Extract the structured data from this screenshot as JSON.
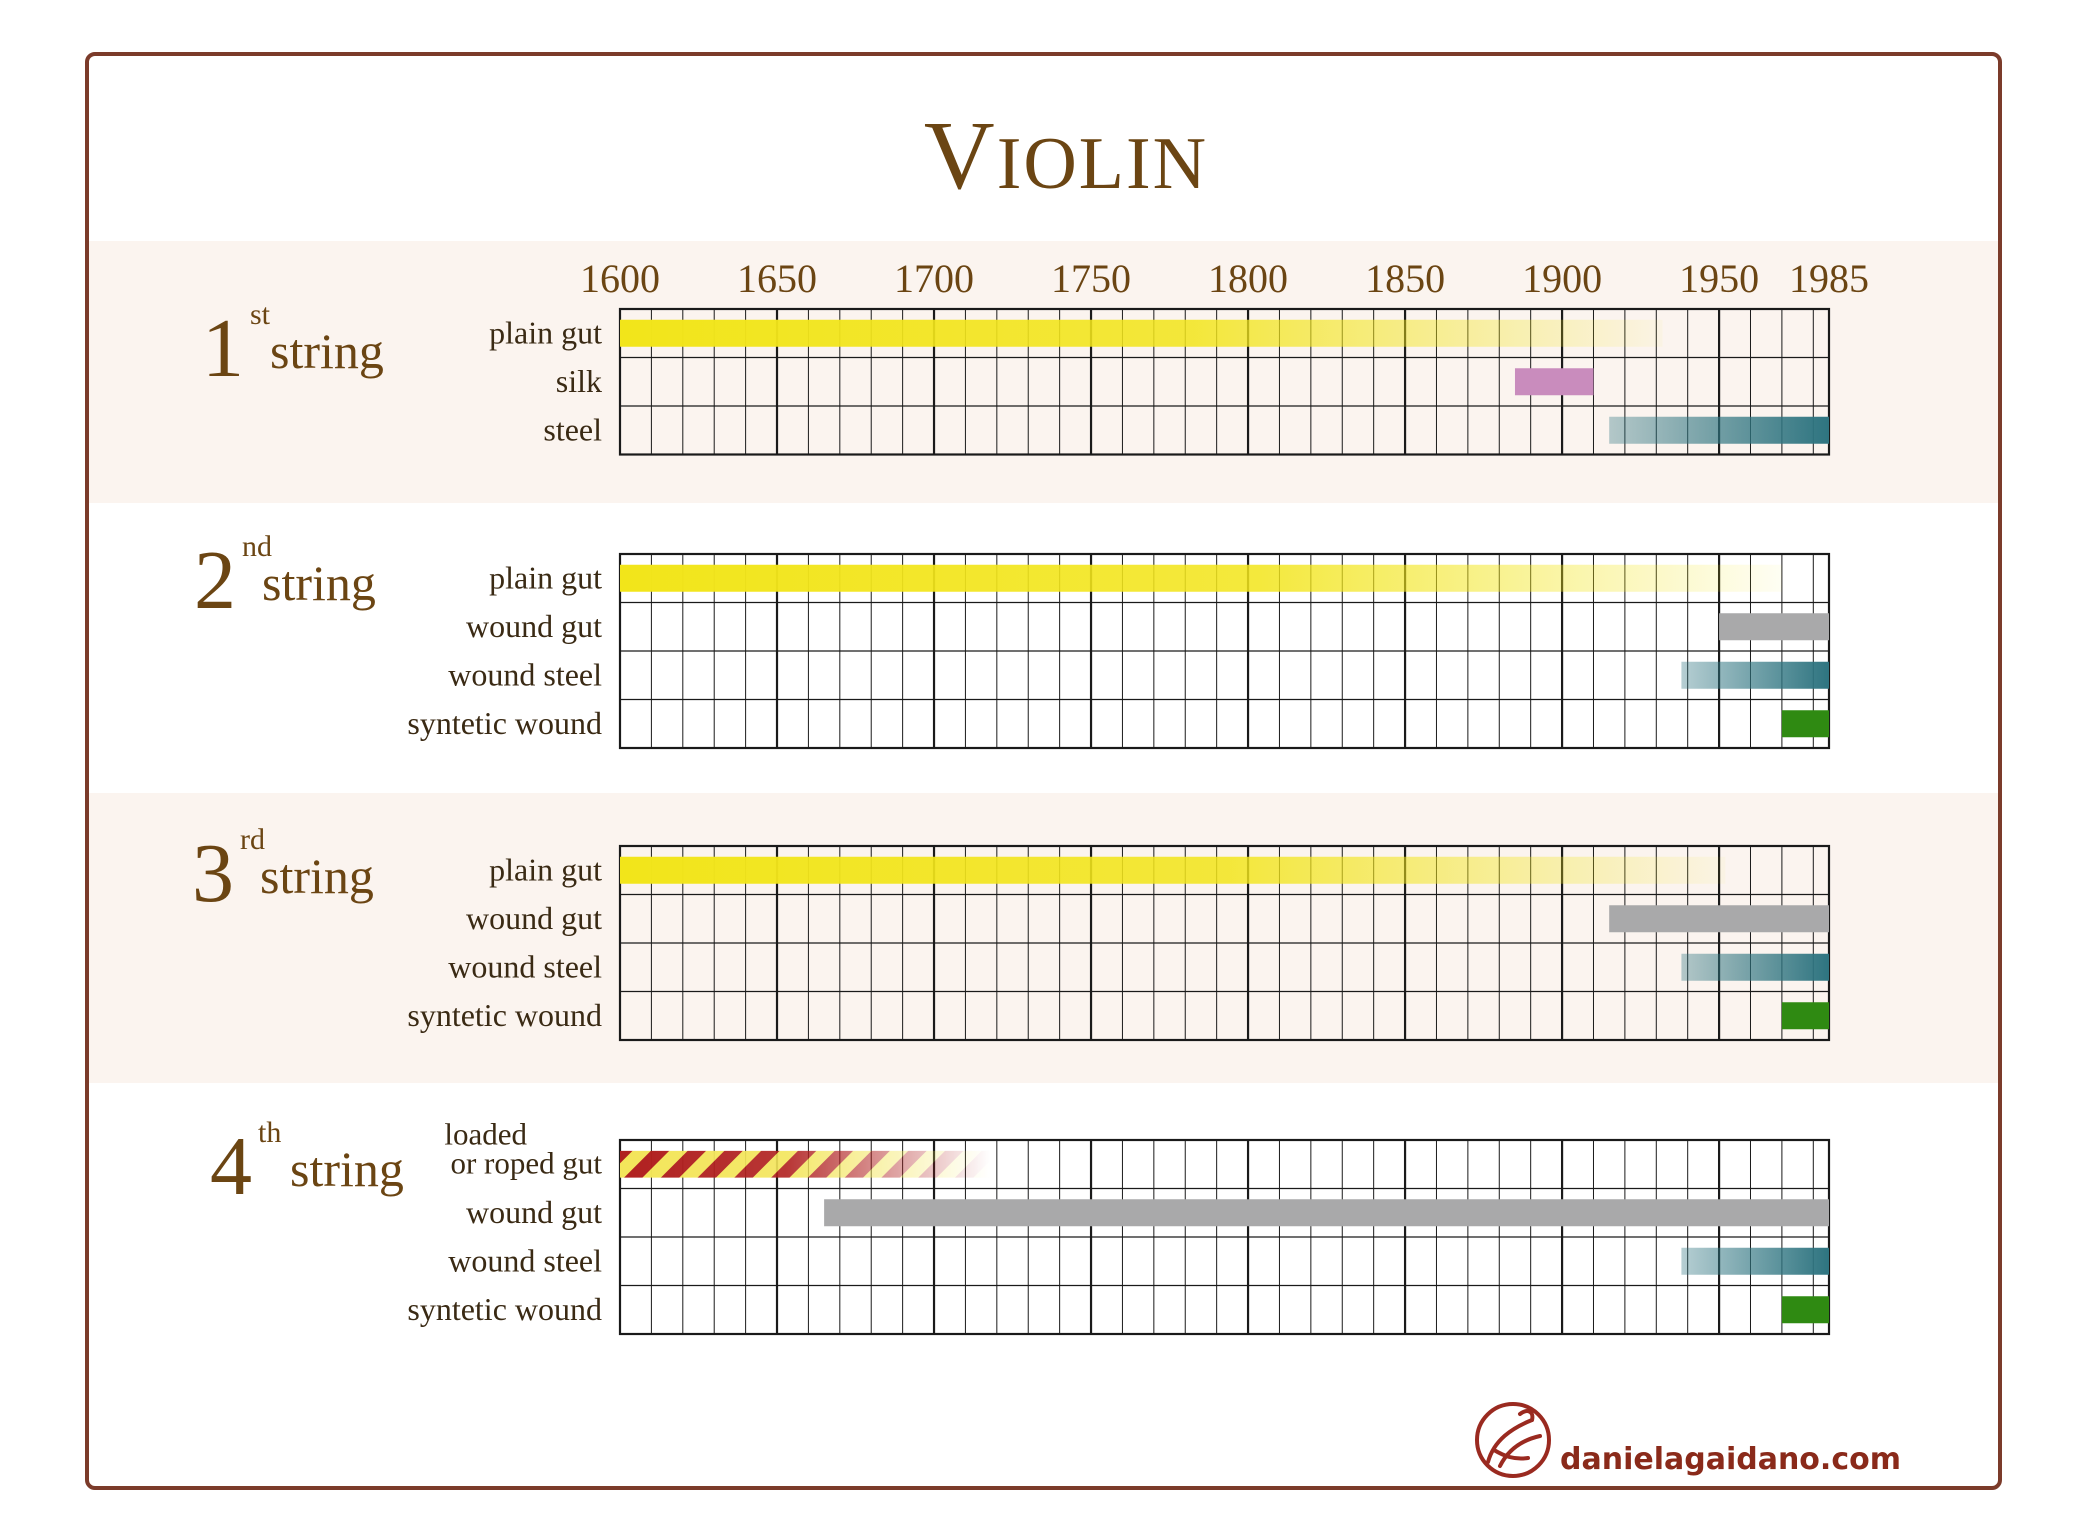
{
  "page": {
    "title": "Violin",
    "website": "danielagaidano.com",
    "logo_icon": "violin-logo-icon"
  },
  "colors": {
    "frame": "#7b3b2a",
    "title": "#6b4513",
    "band": "#fbf4ef",
    "grid": "#1a1a1a",
    "text": "#3a2a14",
    "plain_gut": "#f2e51a",
    "silk": "#c98cbd",
    "steel": "#2e7480",
    "wound_gut": "#a9a9aa",
    "synthetic": "#2f8a12",
    "loaded_stripe_a": "#b0201f",
    "loaded_stripe_b": "#f3e55a",
    "logo": "#9a2a20"
  },
  "chart_data": {
    "type": "timeline",
    "title": "Violin",
    "x_ticks": [
      1600,
      1650,
      1700,
      1750,
      1800,
      1850,
      1900,
      1950,
      1985
    ],
    "xlim": [
      1600,
      1985
    ],
    "minor_step_years": 10,
    "grid": true,
    "strings": [
      {
        "number": "1",
        "suffix": "st",
        "word": "string",
        "rows": [
          {
            "label": "plain gut",
            "start": 1600,
            "end": 1932,
            "fade": "out",
            "color": "plain_gut"
          },
          {
            "label": "silk",
            "start": 1885,
            "end": 1910,
            "fade": "none",
            "color": "silk"
          },
          {
            "label": "steel",
            "start": 1915,
            "end": 1985,
            "fade": "in",
            "color": "steel"
          }
        ]
      },
      {
        "number": "2",
        "suffix": "nd",
        "word": "string",
        "rows": [
          {
            "label": "plain gut",
            "start": 1600,
            "end": 1970,
            "fade": "out",
            "color": "plain_gut"
          },
          {
            "label": "wound gut",
            "start": 1950,
            "end": 1985,
            "fade": "none",
            "color": "wound_gut"
          },
          {
            "label": "wound steel",
            "start": 1938,
            "end": 1985,
            "fade": "in",
            "color": "steel"
          },
          {
            "label": "syntetic wound",
            "start": 1970,
            "end": 1985,
            "fade": "none",
            "color": "synthetic"
          }
        ]
      },
      {
        "number": "3",
        "suffix": "rd",
        "word": "string",
        "rows": [
          {
            "label": "plain gut",
            "start": 1600,
            "end": 1952,
            "fade": "out",
            "color": "plain_gut"
          },
          {
            "label": "wound gut",
            "start": 1915,
            "end": 1985,
            "fade": "none",
            "color": "wound_gut"
          },
          {
            "label": "wound steel",
            "start": 1938,
            "end": 1985,
            "fade": "in",
            "color": "steel"
          },
          {
            "label": "syntetic wound",
            "start": 1970,
            "end": 1985,
            "fade": "none",
            "color": "synthetic"
          }
        ]
      },
      {
        "number": "4",
        "suffix": "th",
        "word": "string",
        "rows": [
          {
            "label": [
              "loaded",
              "or roped gut"
            ],
            "start": 1600,
            "end": 1718,
            "fade": "out",
            "color": "loaded_stripes"
          },
          {
            "label": "wound gut",
            "start": 1665,
            "end": 1985,
            "fade": "none",
            "color": "wound_gut"
          },
          {
            "label": "wound steel",
            "start": 1938,
            "end": 1985,
            "fade": "in",
            "color": "steel"
          },
          {
            "label": "syntetic wound",
            "start": 1970,
            "end": 1985,
            "fade": "none",
            "color": "synthetic"
          }
        ]
      }
    ]
  }
}
